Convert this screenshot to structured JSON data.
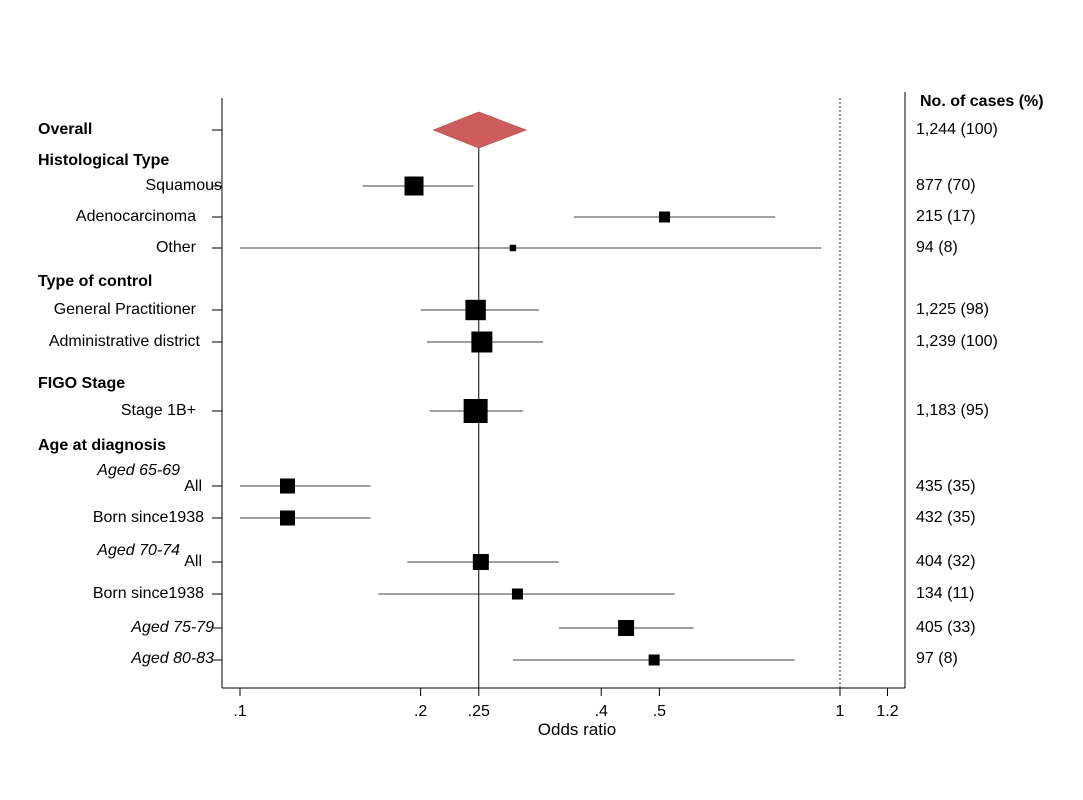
{
  "chart_data": {
    "type": "forest",
    "xlabel": "Odds ratio",
    "x_scale": "log",
    "xlim": [
      0.095,
      1.3
    ],
    "xticks": [
      {
        "value": 0.1,
        "label": ".1"
      },
      {
        "value": 0.2,
        "label": ".2"
      },
      {
        "value": 0.25,
        "label": ".25"
      },
      {
        "value": 0.4,
        "label": ".4"
      },
      {
        "value": 0.5,
        "label": ".5"
      },
      {
        "value": 1,
        "label": "1"
      },
      {
        "value": 1.2,
        "label": "1.2"
      }
    ],
    "reference_line": 1,
    "overall_line": 0.25,
    "count_header": "No. of cases (%)",
    "rows": [
      {
        "label": "Overall",
        "style": "header",
        "diamond": true,
        "or": 0.25,
        "lo": 0.21,
        "hi": 0.3,
        "count": "1,244 (100)"
      },
      {
        "label": "Histological Type",
        "style": "header"
      },
      {
        "label": "Squamous",
        "or": 0.195,
        "lo": 0.16,
        "hi": 0.245,
        "weight": 0.75,
        "count": "877 (70)"
      },
      {
        "label": "Adenocarcinoma",
        "or": 0.51,
        "lo": 0.36,
        "hi": 0.78,
        "weight": 0.35,
        "count": "215 (17)"
      },
      {
        "label": "Other",
        "or": 0.285,
        "lo": 0.1,
        "hi": 0.93,
        "weight": 0.12,
        "count": "94 (8)"
      },
      {
        "label": "Type of control",
        "style": "header"
      },
      {
        "label": "General Practitioner",
        "or": 0.247,
        "lo": 0.2,
        "hi": 0.315,
        "weight": 0.82,
        "count": "1,225 (98)"
      },
      {
        "label": "Administrative district",
        "or": 0.253,
        "lo": 0.205,
        "hi": 0.32,
        "weight": 0.85,
        "count": "1,239 (100)"
      },
      {
        "label": "FIGO Stage",
        "style": "header"
      },
      {
        "label": "Stage 1B+",
        "or": 0.247,
        "lo": 0.207,
        "hi": 0.296,
        "weight": 1.0,
        "count": "1,183 (95)"
      },
      {
        "label": "Age at diagnosis",
        "style": "header"
      },
      {
        "label": "Aged 65-69",
        "style": "italic"
      },
      {
        "label": "All",
        "or": 0.12,
        "lo": 0.1,
        "hi": 0.165,
        "weight": 0.55,
        "count": "435 (35)"
      },
      {
        "label": "Born since1938",
        "or": 0.12,
        "lo": 0.1,
        "hi": 0.165,
        "weight": 0.55,
        "count": "432 (35)"
      },
      {
        "label": "Aged 70-74",
        "style": "italic"
      },
      {
        "label": "All",
        "or": 0.252,
        "lo": 0.19,
        "hi": 0.34,
        "weight": 0.6,
        "count": "404 (32)"
      },
      {
        "label": "Born since1938",
        "or": 0.29,
        "lo": 0.17,
        "hi": 0.53,
        "weight": 0.35,
        "count": "134 (11)"
      },
      {
        "label": "Aged 75-79",
        "style": "italic",
        "or": 0.44,
        "lo": 0.34,
        "hi": 0.57,
        "weight": 0.6,
        "count": "405 (33)"
      },
      {
        "label": "Aged 80-83",
        "style": "italic",
        "or": 0.49,
        "lo": 0.285,
        "hi": 0.84,
        "weight": 0.35,
        "count": "97 (8)"
      }
    ]
  }
}
